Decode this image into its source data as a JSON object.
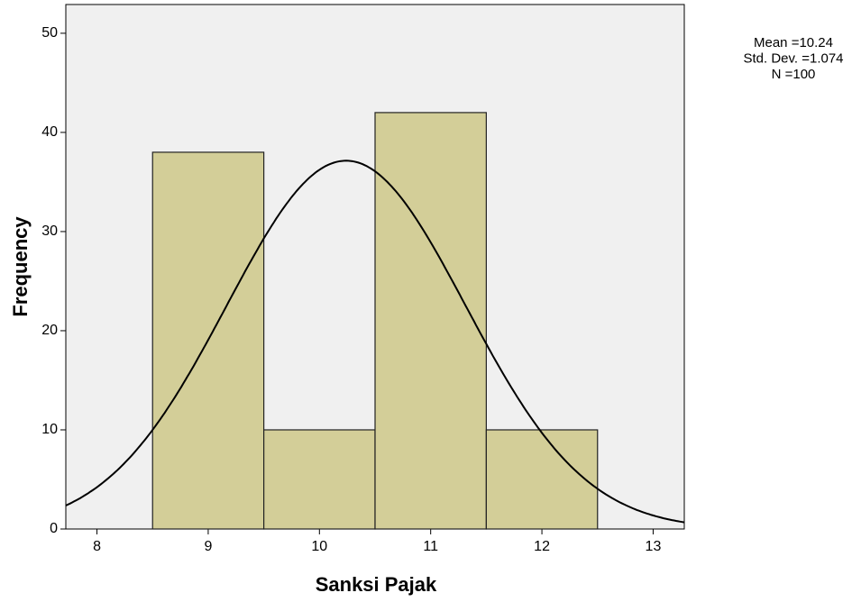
{
  "chart_data": {
    "type": "histogram",
    "x_label": "Sanksi Pajak",
    "y_label": "Frequency",
    "bins": [
      8.5,
      9.5,
      10.5,
      11.5,
      12.5
    ],
    "values": [
      38,
      10,
      42,
      10
    ],
    "color": "#d3ce98",
    "xlim": [
      7.72,
      13.28
    ],
    "xticks": [
      8,
      9,
      10,
      11,
      12,
      13
    ],
    "ylim": [
      0,
      52.9
    ],
    "yticks": [
      0,
      10,
      20,
      30,
      40,
      50
    ],
    "normal_curve": true,
    "stats": [
      {
        "value": 10.24,
        "label": "Mean =10.24"
      },
      {
        "value": 1.074,
        "label": "Std. Dev. =1.074"
      },
      {
        "value": 100,
        "label": "N =100"
      }
    ]
  }
}
